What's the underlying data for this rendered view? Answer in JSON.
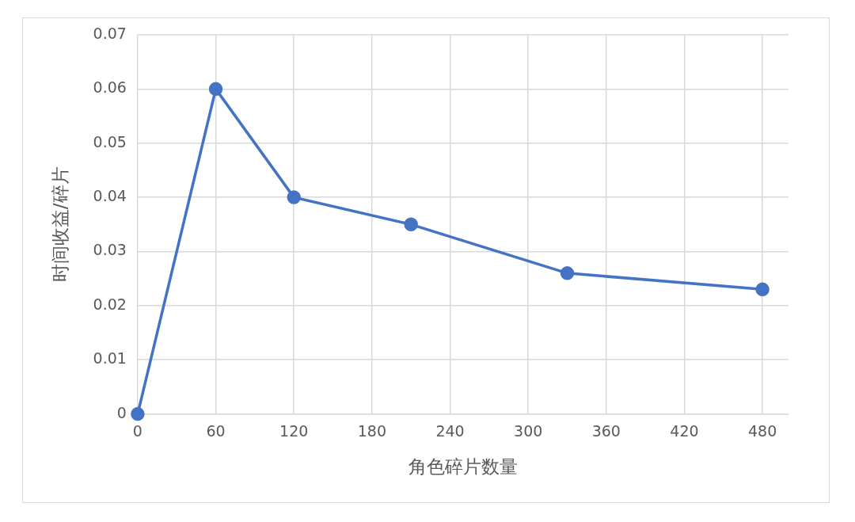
{
  "chart_data": {
    "type": "line",
    "xlabel": "角色碎片数量",
    "ylabel": "时间收益/碎片",
    "x": [
      0,
      60,
      120,
      210,
      330,
      480
    ],
    "series": [
      {
        "color": "#4472c4",
        "values": [
          0,
          0.06,
          0.04,
          0.035,
          0.026,
          0.023
        ]
      }
    ],
    "xlim": [
      0,
      500
    ],
    "xticks": [
      0,
      60,
      120,
      180,
      240,
      300,
      360,
      420,
      480
    ],
    "ylim": [
      0,
      0.07
    ],
    "yticks": [
      0,
      0.01,
      0.02,
      0.03,
      0.04,
      0.05,
      0.06,
      0.07
    ],
    "grid": true,
    "legend": false,
    "marker": "circle",
    "line_style": "solid"
  }
}
